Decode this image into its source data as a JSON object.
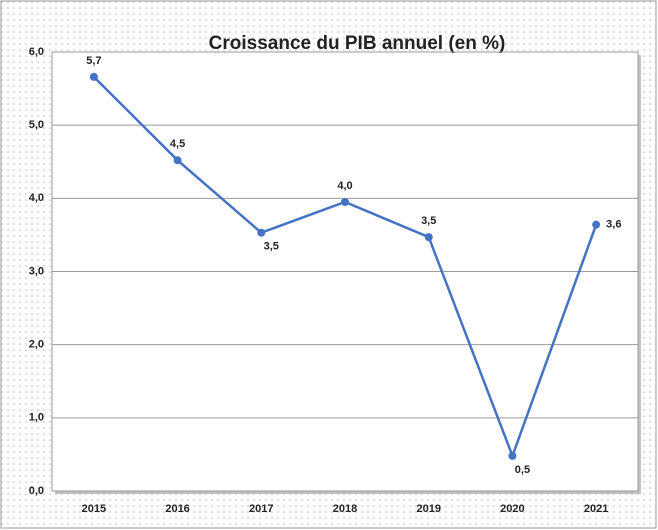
{
  "chart_data": {
    "type": "line",
    "title": "Croissance du PIB annuel (en %)",
    "categories": [
      "2015",
      "2016",
      "2017",
      "2018",
      "2019",
      "2020",
      "2021"
    ],
    "series": [
      {
        "color": "#4472c4",
        "values": [
          5.66,
          4.52,
          3.53,
          3.95,
          3.47,
          0.48,
          3.64
        ],
        "value_labels": [
          "5,7",
          "4,5",
          "3,5",
          "4,0",
          "3,5",
          "0,5",
          "3,6"
        ]
      }
    ],
    "ylim": [
      0,
      6
    ],
    "yticks": [
      {
        "value": 0,
        "label": "0,0"
      },
      {
        "value": 1,
        "label": "1,0"
      },
      {
        "value": 2,
        "label": "2,0"
      },
      {
        "value": 3,
        "label": "3,0"
      },
      {
        "value": 4,
        "label": "4,0"
      },
      {
        "value": 5,
        "label": "5,0"
      },
      {
        "value": 6,
        "label": "6,0"
      }
    ],
    "grid": true
  }
}
